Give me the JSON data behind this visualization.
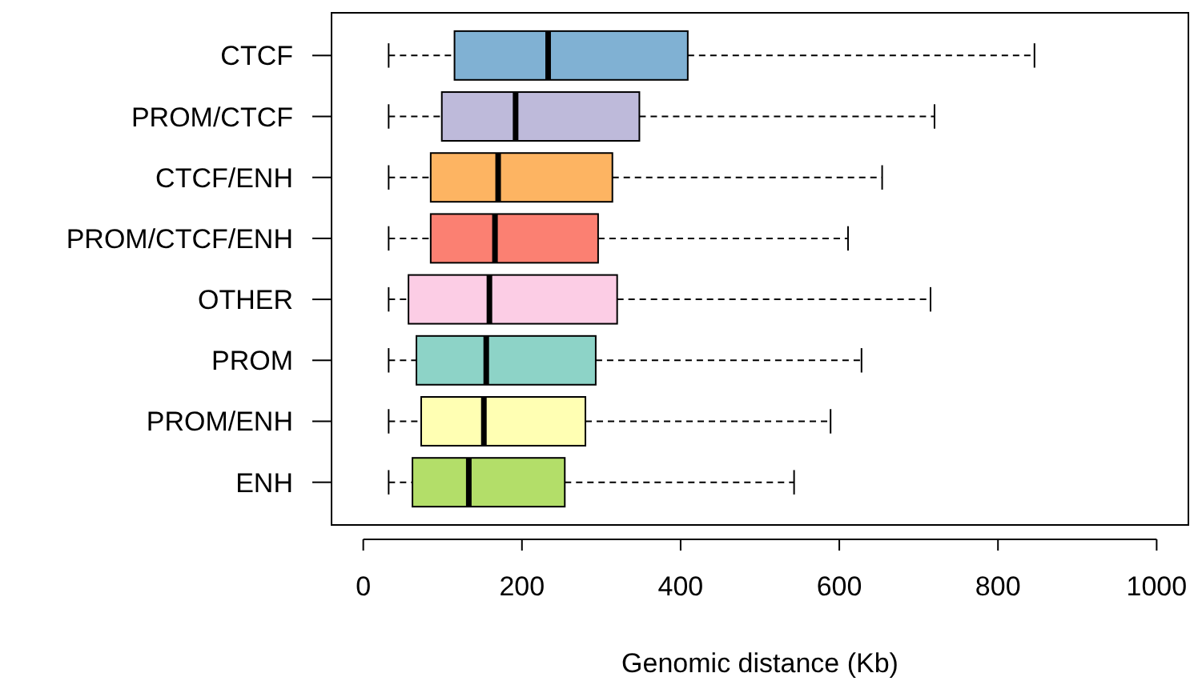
{
  "chart_data": {
    "type": "box",
    "orientation": "horizontal",
    "xlabel": "Genomic distance (Kb)",
    "categories": [
      "CTCF",
      "PROM/CTCF",
      "CTCF/ENH",
      "PROM/CTCF/ENH",
      "OTHER",
      "PROM",
      "PROM/ENH",
      "ENH"
    ],
    "colors": [
      "#80b1d3",
      "#bebada",
      "#fdb462",
      "#fb8072",
      "#fccde5",
      "#8dd3c7",
      "#ffffb3",
      "#b3de69"
    ],
    "boxes": [
      {
        "low": 32,
        "q1": 115,
        "median": 233,
        "q3": 409,
        "high": 846
      },
      {
        "low": 32,
        "q1": 99,
        "median": 192,
        "q3": 348,
        "high": 720
      },
      {
        "low": 32,
        "q1": 85,
        "median": 170,
        "q3": 314,
        "high": 654
      },
      {
        "low": 32,
        "q1": 85,
        "median": 166,
        "q3": 296,
        "high": 611
      },
      {
        "low": 32,
        "q1": 57,
        "median": 159,
        "q3": 320,
        "high": 715
      },
      {
        "low": 32,
        "q1": 67,
        "median": 155,
        "q3": 293,
        "high": 628
      },
      {
        "low": 32,
        "q1": 73,
        "median": 152,
        "q3": 280,
        "high": 589
      },
      {
        "low": 32,
        "q1": 62,
        "median": 133,
        "q3": 254,
        "high": 543
      }
    ],
    "xlim": [
      -40,
      1040
    ],
    "xticks": [
      0,
      200,
      400,
      600,
      800,
      1000
    ],
    "grid": false
  }
}
